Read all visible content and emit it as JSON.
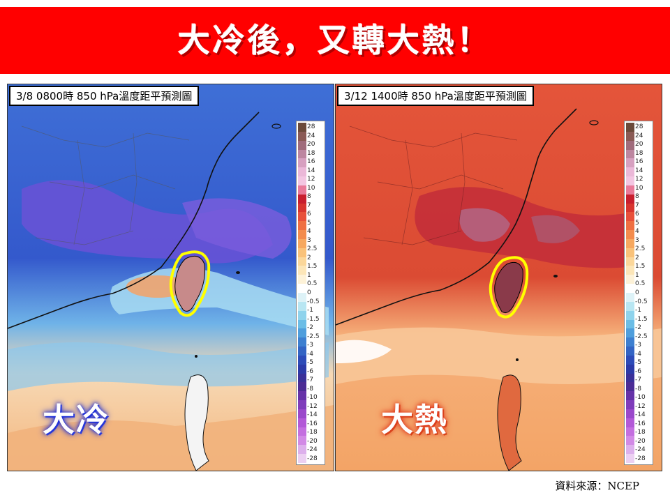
{
  "banner": {
    "title": "大冷後，又轉大熱！",
    "bg_color": "#ff0000"
  },
  "panels": [
    {
      "label": "3/8  0800時  850 hPa溫度距平預測圖",
      "big_word": "大冷",
      "theme": "cold"
    },
    {
      "label": "3/12  1400時  850 hPa溫度距平預測圖",
      "big_word": "大熱",
      "theme": "hot"
    }
  ],
  "colorbar": {
    "ticks": [
      "28",
      "24",
      "20",
      "18",
      "16",
      "14",
      "12",
      "10",
      "8",
      "7",
      "6",
      "5",
      "4",
      "3",
      "2.5",
      "2",
      "1.5",
      "1",
      "0.5",
      "0",
      "-0.5",
      "-1",
      "-1.5",
      "-2",
      "-2.5",
      "-3",
      "-4",
      "-5",
      "-6",
      "-7",
      "-8",
      "-10",
      "-12",
      "-14",
      "-16",
      "-18",
      "-20",
      "-24",
      "-28"
    ],
    "colors": [
      "#6b4a3a",
      "#8a5a55",
      "#a06c7c",
      "#bd86a0",
      "#d7a0c0",
      "#ebb8d8",
      "#f3c6e2",
      "#e97a9a",
      "#c81e2e",
      "#d8352f",
      "#e8503a",
      "#ef6f42",
      "#f38c4d",
      "#f6a860",
      "#f9c27a",
      "#fbd79a",
      "#fce6b8",
      "#fdf2d8",
      "#ffffff",
      "#ddf2f7",
      "#b8e6f2",
      "#8fd3ec",
      "#6bbde6",
      "#4f9edc",
      "#3d7fd0",
      "#3364c4",
      "#2d4bb8",
      "#2c3aa8",
      "#3a3099",
      "#4b2c95",
      "#6532a8",
      "#7f3cbb",
      "#9a48cb",
      "#b359d8",
      "#c46fe0",
      "#d28ae6",
      "#ddb0ec",
      "#ecd0f2"
    ]
  },
  "source_note": "資料來源：NCEP",
  "colors": {
    "cold_base": "#2f57c8",
    "cold_deep": "#6a4fd4",
    "warm_base": "#e45a35",
    "highlight": "#ffff00"
  }
}
